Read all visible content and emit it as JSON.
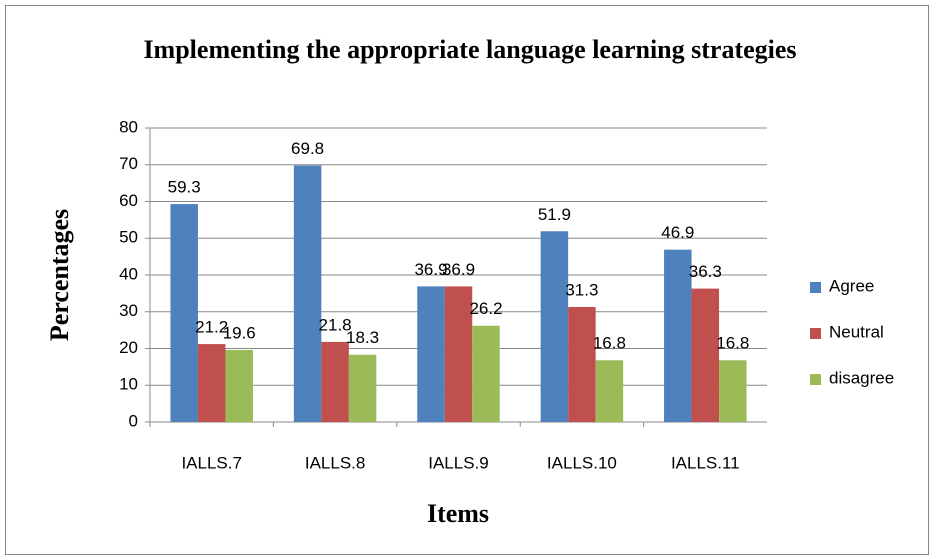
{
  "chart_data": {
    "type": "bar",
    "title": "Implementing the appropriate language learning strategies",
    "x_label": "Items",
    "y_label": "Percentages",
    "categories": [
      "IALLS.7",
      "IALLS.8",
      "IALLS.9",
      "IALLS.10",
      "IALLS.11"
    ],
    "series": [
      {
        "name": "Agree",
        "color": "#4f81bd",
        "values": [
          59.3,
          69.8,
          36.9,
          51.9,
          46.9
        ]
      },
      {
        "name": "Neutral",
        "color": "#c0504d",
        "values": [
          21.2,
          21.8,
          36.9,
          31.3,
          36.3
        ]
      },
      {
        "name": "disagree",
        "color": "#9bbb59",
        "values": [
          19.6,
          18.3,
          26.2,
          16.8,
          16.8
        ]
      }
    ],
    "ylim": [
      0,
      80
    ],
    "yticks": [
      0,
      10,
      20,
      30,
      40,
      50,
      60,
      70,
      80
    ],
    "grid": true,
    "legend": "right"
  }
}
